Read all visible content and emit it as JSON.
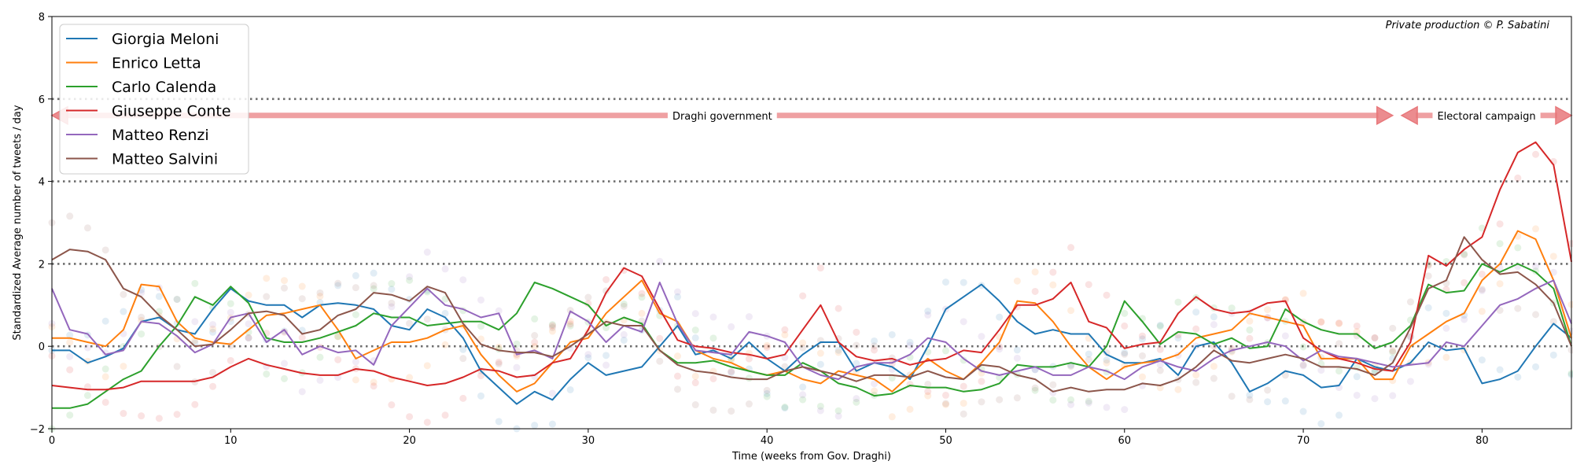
{
  "chart_data": {
    "type": "line",
    "title": "",
    "credit": "Private production © P. Sabatini",
    "xlabel": "Time (weeks from Gov. Draghi)",
    "ylabel": "Standardized Average number of tweets / day",
    "xlim": [
      0,
      85
    ],
    "ylim": [
      -2,
      8
    ],
    "xticks": [
      0,
      10,
      20,
      30,
      40,
      50,
      60,
      70,
      80
    ],
    "yticks": [
      -2,
      0,
      2,
      4,
      6,
      8
    ],
    "hlines": [
      0,
      2,
      4,
      6
    ],
    "grid": false,
    "legend_position": "upper-left",
    "x": [
      0,
      1,
      2,
      3,
      4,
      5,
      6,
      7,
      8,
      9,
      10,
      11,
      12,
      13,
      14,
      15,
      16,
      17,
      18,
      19,
      20,
      21,
      22,
      23,
      24,
      25,
      26,
      27,
      28,
      29,
      30,
      31,
      32,
      33,
      34,
      35,
      36,
      37,
      38,
      39,
      40,
      41,
      42,
      43,
      44,
      45,
      46,
      47,
      48,
      49,
      50,
      51,
      52,
      53,
      54,
      55,
      56,
      57,
      58,
      59,
      60,
      61,
      62,
      63,
      64,
      65,
      66,
      67,
      68,
      69,
      70,
      71,
      72,
      73,
      74,
      75,
      76,
      77,
      78,
      79,
      80,
      81,
      82,
      83,
      84,
      85
    ],
    "series": [
      {
        "name": "Giorgia Meloni",
        "color": "#1f77b4",
        "values": [
          -0.1,
          -0.1,
          -0.4,
          -0.25,
          -0.05,
          0.6,
          0.7,
          0.4,
          0.3,
          0.9,
          1.4,
          1.1,
          1.0,
          1.0,
          0.7,
          1.0,
          1.05,
          1.0,
          0.9,
          0.5,
          0.4,
          0.9,
          0.7,
          0.2,
          -0.6,
          -1.0,
          -1.4,
          -1.1,
          -1.3,
          -0.8,
          -0.4,
          -0.7,
          -0.6,
          -0.5,
          0.0,
          0.5,
          -0.2,
          -0.1,
          -0.3,
          0.1,
          -0.3,
          -0.6,
          -0.2,
          0.1,
          0.1,
          -0.6,
          -0.4,
          -0.5,
          -0.8,
          0.0,
          0.9,
          1.2,
          1.5,
          1.1,
          0.6,
          0.3,
          0.4,
          0.3,
          0.3,
          -0.2,
          -0.4,
          -0.4,
          -0.3,
          -0.7,
          0.0,
          0.1,
          -0.4,
          -1.1,
          -0.9,
          -0.6,
          -0.7,
          -1.0,
          -0.95,
          -0.3,
          -0.5,
          -0.6,
          -0.4,
          0.1,
          -0.1,
          -0.05,
          -0.9,
          -0.8,
          -0.6,
          0.0,
          0.55,
          0.2
        ]
      },
      {
        "name": "Enrico Letta",
        "color": "#ff7f0e",
        "values": [
          0.2,
          0.2,
          0.1,
          0.0,
          0.4,
          1.5,
          1.45,
          0.6,
          0.2,
          0.1,
          0.05,
          0.4,
          0.75,
          0.8,
          0.9,
          1.0,
          0.4,
          -0.3,
          -0.1,
          0.1,
          0.1,
          0.2,
          0.4,
          0.5,
          -0.2,
          -0.7,
          -1.1,
          -0.9,
          -0.4,
          0.1,
          0.2,
          0.8,
          1.2,
          1.6,
          0.8,
          0.6,
          -0.1,
          -0.3,
          -0.4,
          -0.6,
          -0.7,
          -0.6,
          -0.8,
          -0.9,
          -0.6,
          -0.7,
          -0.8,
          -1.1,
          -0.7,
          -0.3,
          -0.6,
          -0.8,
          -0.4,
          0.1,
          1.1,
          1.05,
          0.6,
          0.0,
          -0.5,
          -0.8,
          -0.5,
          -0.4,
          -0.35,
          -0.2,
          0.2,
          0.3,
          0.4,
          0.8,
          0.7,
          0.6,
          0.5,
          -0.3,
          -0.3,
          -0.3,
          -0.8,
          -0.8,
          0.0,
          0.3,
          0.6,
          0.8,
          1.6,
          2.0,
          2.8,
          2.6,
          1.6,
          0.2
        ]
      },
      {
        "name": "Carlo Calenda",
        "color": "#2ca02c",
        "values": [
          -1.5,
          -1.5,
          -1.4,
          -1.1,
          -0.8,
          -0.6,
          0.0,
          0.5,
          1.2,
          1.0,
          1.45,
          1.05,
          0.2,
          0.1,
          0.1,
          0.2,
          0.35,
          0.5,
          0.8,
          0.7,
          0.7,
          0.5,
          0.55,
          0.6,
          0.6,
          0.4,
          0.8,
          1.55,
          1.4,
          1.2,
          1.0,
          0.5,
          0.7,
          0.55,
          -0.1,
          -0.4,
          -0.4,
          -0.35,
          -0.5,
          -0.6,
          -0.7,
          -0.7,
          -0.4,
          -0.6,
          -0.9,
          -1.0,
          -1.2,
          -1.15,
          -0.95,
          -1.0,
          -1.0,
          -1.1,
          -1.05,
          -0.9,
          -0.45,
          -0.5,
          -0.5,
          -0.4,
          -0.5,
          0.0,
          1.1,
          0.6,
          0.05,
          0.35,
          0.3,
          0.05,
          0.2,
          -0.05,
          0.0,
          0.9,
          0.6,
          0.4,
          0.3,
          0.3,
          -0.05,
          0.1,
          0.5,
          1.5,
          1.3,
          1.35,
          2.0,
          1.8,
          2.0,
          1.8,
          1.4,
          0.0
        ]
      },
      {
        "name": "Giuseppe Conte",
        "color": "#d62728",
        "values": [
          -0.95,
          -1.0,
          -1.05,
          -1.05,
          -1.0,
          -0.85,
          -0.85,
          -0.85,
          -0.85,
          -0.75,
          -0.5,
          -0.3,
          -0.45,
          -0.55,
          -0.65,
          -0.7,
          -0.7,
          -0.55,
          -0.6,
          -0.75,
          -0.85,
          -0.95,
          -0.9,
          -0.75,
          -0.55,
          -0.6,
          -0.75,
          -0.7,
          -0.4,
          -0.3,
          0.4,
          1.3,
          1.9,
          1.7,
          0.9,
          0.15,
          0.0,
          -0.05,
          -0.15,
          -0.2,
          -0.3,
          -0.2,
          0.4,
          1.0,
          0.1,
          -0.25,
          -0.35,
          -0.3,
          -0.45,
          -0.35,
          -0.3,
          -0.1,
          -0.15,
          0.4,
          1.0,
          1.0,
          1.15,
          1.55,
          0.6,
          0.45,
          -0.05,
          0.05,
          0.1,
          0.8,
          1.2,
          0.9,
          0.8,
          0.85,
          1.05,
          1.1,
          0.2,
          -0.1,
          -0.3,
          -0.4,
          -0.55,
          -0.6,
          0.1,
          2.2,
          1.95,
          2.35,
          2.65,
          3.8,
          4.7,
          4.95,
          4.4,
          2.05
        ]
      },
      {
        "name": "Matteo Renzi",
        "color": "#9467bd",
        "values": [
          1.4,
          0.4,
          0.3,
          -0.2,
          -0.1,
          0.6,
          0.55,
          0.25,
          -0.15,
          0.05,
          0.7,
          0.8,
          0.1,
          0.4,
          -0.2,
          0.0,
          -0.15,
          -0.1,
          -0.45,
          0.5,
          0.95,
          1.4,
          1.0,
          0.9,
          0.7,
          0.8,
          -0.2,
          -0.1,
          -0.3,
          0.85,
          0.6,
          0.1,
          0.5,
          0.35,
          1.55,
          0.55,
          -0.1,
          -0.15,
          -0.2,
          0.35,
          0.25,
          0.1,
          -0.5,
          -0.7,
          -0.8,
          -0.5,
          -0.4,
          -0.4,
          -0.2,
          0.2,
          0.1,
          -0.3,
          -0.6,
          -0.7,
          -0.6,
          -0.5,
          -0.7,
          -0.7,
          -0.5,
          -0.6,
          -0.8,
          -0.5,
          -0.35,
          -0.5,
          -0.6,
          -0.3,
          -0.1,
          0.0,
          0.1,
          0.0,
          -0.35,
          -0.1,
          -0.25,
          -0.3,
          -0.4,
          -0.5,
          -0.45,
          -0.4,
          0.1,
          0.0,
          0.5,
          1.0,
          1.15,
          1.4,
          1.6,
          0.55
        ]
      },
      {
        "name": "Matteo Salvini",
        "color": "#8c564b",
        "values": [
          2.1,
          2.35,
          2.3,
          2.1,
          1.4,
          1.2,
          0.75,
          0.4,
          0.0,
          0.05,
          0.4,
          0.8,
          0.85,
          0.75,
          0.3,
          0.4,
          0.75,
          0.9,
          1.3,
          1.25,
          1.1,
          1.45,
          1.3,
          0.55,
          0.05,
          -0.1,
          -0.15,
          -0.15,
          -0.25,
          0.0,
          0.3,
          0.6,
          0.5,
          0.5,
          -0.1,
          -0.45,
          -0.6,
          -0.65,
          -0.75,
          -0.8,
          -0.8,
          -0.6,
          -0.5,
          -0.6,
          -0.7,
          -0.85,
          -0.7,
          -0.7,
          -0.75,
          -0.6,
          -0.75,
          -0.8,
          -0.45,
          -0.5,
          -0.7,
          -0.8,
          -1.1,
          -1.0,
          -1.1,
          -1.05,
          -1.05,
          -0.9,
          -0.95,
          -0.8,
          -0.5,
          -0.1,
          -0.35,
          -0.4,
          -0.3,
          -0.2,
          -0.3,
          -0.5,
          -0.5,
          -0.55,
          -0.7,
          -0.4,
          0.45,
          1.4,
          1.6,
          2.65,
          2.1,
          1.75,
          1.8,
          1.5,
          1.05,
          0.0
        ]
      }
    ],
    "annotations": [
      {
        "text": "Draghi government",
        "x_start": 0,
        "x_end": 75,
        "y": 5.6
      },
      {
        "text": "Electoral campaign",
        "x_start": 75.5,
        "x_end": 85,
        "y": 5.6
      }
    ]
  }
}
